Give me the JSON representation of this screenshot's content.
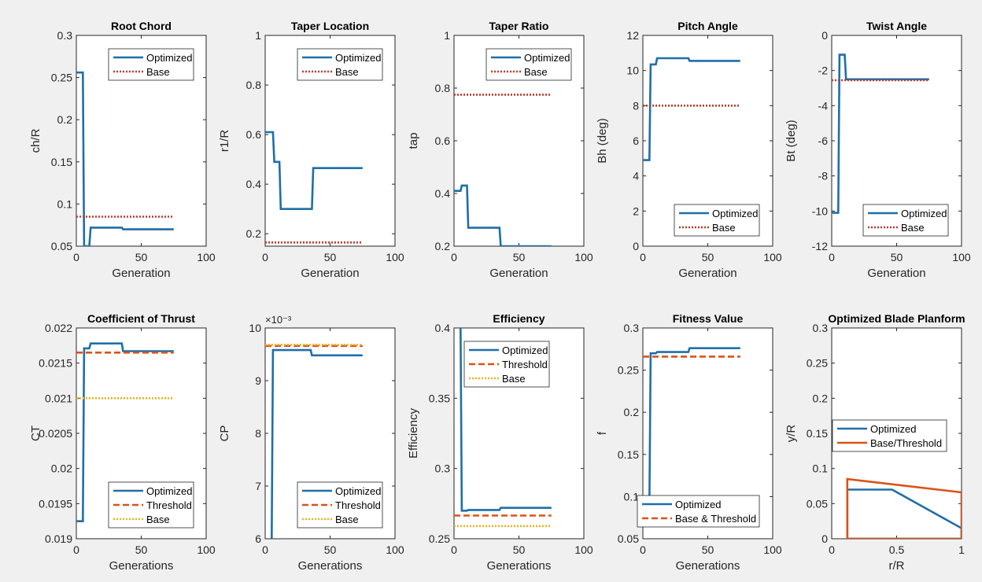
{
  "colors": {
    "optimized": "#1f6fa8",
    "base": "#d95319",
    "base_dotted": "#c0392b",
    "base_yellow": "#edb120",
    "background": "#f0f0f0",
    "axes": "#ffffff"
  },
  "chart_data": [
    {
      "type": "line",
      "title": "Root Chord",
      "xlabel": "Generation",
      "ylabel": "ch/R",
      "xlim": [
        0,
        100
      ],
      "ylim": [
        0.05,
        0.3
      ],
      "xticks": [
        "0",
        "50",
        "100"
      ],
      "yticks": [
        "0.05",
        "0.1",
        "0.15",
        "0.2",
        "0.25",
        "0.3"
      ],
      "legend": "top-right",
      "series": [
        {
          "name": "Optimized",
          "style": "solid",
          "color": "optimized",
          "x": [
            0,
            5,
            6,
            10,
            11,
            35,
            36,
            75
          ],
          "y": [
            0.256,
            0.256,
            0.05,
            0.05,
            0.072,
            0.072,
            0.07,
            0.07
          ]
        },
        {
          "name": "Base",
          "style": "dotted",
          "color": "base_dotted",
          "x": [
            0,
            75
          ],
          "y": [
            0.085,
            0.085
          ]
        }
      ]
    },
    {
      "type": "line",
      "title": "Taper Location",
      "xlabel": "Generation",
      "ylabel": "r1/R",
      "xlim": [
        0,
        100
      ],
      "ylim": [
        0.15,
        1
      ],
      "xticks": [
        "0",
        "50",
        "100"
      ],
      "yticks": [
        "0.2",
        "0.4",
        "0.6",
        "0.8",
        "1"
      ],
      "legend": "top-right",
      "series": [
        {
          "name": "Optimized",
          "style": "solid",
          "color": "optimized",
          "x": [
            0,
            6,
            7,
            11,
            12,
            36,
            37,
            75
          ],
          "y": [
            0.61,
            0.61,
            0.49,
            0.49,
            0.3,
            0.3,
            0.465,
            0.465
          ]
        },
        {
          "name": "Base",
          "style": "dotted",
          "color": "base_dotted",
          "x": [
            0,
            75
          ],
          "y": [
            0.165,
            0.165
          ]
        }
      ]
    },
    {
      "type": "line",
      "title": "Taper Ratio",
      "xlabel": "Generation",
      "ylabel": "tap",
      "xlim": [
        0,
        100
      ],
      "ylim": [
        0.2,
        1
      ],
      "xticks": [
        "0",
        "50",
        "100"
      ],
      "yticks": [
        "0.2",
        "0.4",
        "0.6",
        "0.8",
        "1"
      ],
      "legend": "top-right",
      "series": [
        {
          "name": "Optimized",
          "style": "solid",
          "color": "optimized",
          "x": [
            0,
            5,
            6,
            10,
            11,
            35,
            36,
            75
          ],
          "y": [
            0.41,
            0.41,
            0.43,
            0.43,
            0.27,
            0.27,
            0.2,
            0.2
          ]
        },
        {
          "name": "Base",
          "style": "dotted",
          "color": "base_dotted",
          "x": [
            0,
            75
          ],
          "y": [
            0.775,
            0.775
          ]
        }
      ]
    },
    {
      "type": "line",
      "title": "Pitch Angle",
      "xlabel": "Generation",
      "ylabel": "Bh (deg)",
      "xlim": [
        0,
        100
      ],
      "ylim": [
        0,
        12
      ],
      "xticks": [
        "0",
        "50",
        "100"
      ],
      "yticks": [
        "0",
        "2",
        "4",
        "6",
        "8",
        "10",
        "12"
      ],
      "legend": "bottom-right",
      "series": [
        {
          "name": "Optimized",
          "style": "solid",
          "color": "optimized",
          "x": [
            0,
            5,
            6,
            10,
            11,
            35,
            36,
            75
          ],
          "y": [
            4.9,
            4.9,
            10.35,
            10.35,
            10.7,
            10.7,
            10.55,
            10.55
          ]
        },
        {
          "name": "Base",
          "style": "dotted",
          "color": "base_dotted",
          "x": [
            0,
            75
          ],
          "y": [
            8,
            8
          ]
        }
      ]
    },
    {
      "type": "line",
      "title": "Twist Angle",
      "xlabel": "Generation",
      "ylabel": "Bt (deg)",
      "xlim": [
        0,
        100
      ],
      "ylim": [
        -12,
        0
      ],
      "xticks": [
        "0",
        "50",
        "100"
      ],
      "yticks": [
        "-12",
        "-10",
        "-8",
        "-6",
        "-4",
        "-2",
        "0"
      ],
      "legend": "bottom-right",
      "series": [
        {
          "name": "Optimized",
          "style": "solid",
          "color": "optimized",
          "x": [
            0,
            5,
            6,
            10,
            11,
            75
          ],
          "y": [
            -10.1,
            -10.1,
            -1.1,
            -1.1,
            -2.5,
            -2.5
          ]
        },
        {
          "name": "Base",
          "style": "dotted",
          "color": "base_dotted",
          "x": [
            0,
            75
          ],
          "y": [
            -2.55,
            -2.55
          ]
        }
      ]
    },
    {
      "type": "line",
      "title": "Coefficient of Thrust",
      "xlabel": "Generations",
      "ylabel": "CT",
      "xlim": [
        0,
        100
      ],
      "ylim": [
        0.019,
        0.022
      ],
      "xticks": [
        "0",
        "50",
        "100"
      ],
      "yticks": [
        "0.019",
        "0.0195",
        "0.02",
        "0.0205",
        "0.021",
        "0.0215",
        "0.022"
      ],
      "legend": "bottom-right",
      "series": [
        {
          "name": "Optimized",
          "style": "solid",
          "color": "optimized",
          "x": [
            0,
            5,
            6,
            10,
            11,
            35,
            36,
            75
          ],
          "y": [
            0.01925,
            0.01925,
            0.02171,
            0.02171,
            0.02178,
            0.02178,
            0.02167,
            0.02167
          ]
        },
        {
          "name": "Threshold",
          "style": "dashed",
          "color": "base",
          "x": [
            0,
            75
          ],
          "y": [
            0.02165,
            0.02165
          ]
        },
        {
          "name": "Base",
          "style": "dotted",
          "color": "base_yellow",
          "x": [
            0,
            75
          ],
          "y": [
            0.021,
            0.021
          ]
        }
      ]
    },
    {
      "type": "line",
      "title": "",
      "exponent": "×10⁻³",
      "xlabel": "Generations",
      "ylabel": "CP",
      "xlim": [
        0,
        100
      ],
      "ylim": [
        6,
        10
      ],
      "xticks": [
        "0",
        "50",
        "100"
      ],
      "yticks": [
        "6",
        "7",
        "8",
        "9",
        "10"
      ],
      "legend": "bottom-right",
      "series": [
        {
          "name": "Optimized",
          "style": "solid",
          "color": "optimized",
          "x": [
            5,
            5,
            6,
            35,
            36,
            75
          ],
          "y": [
            6,
            6,
            9.58,
            9.58,
            9.48,
            9.48
          ]
        },
        {
          "name": "Threshold",
          "style": "dashed",
          "color": "base",
          "x": [
            0,
            75
          ],
          "y": [
            9.66,
            9.66
          ]
        },
        {
          "name": "Base",
          "style": "dotted",
          "color": "base_yellow",
          "x": [
            0,
            75
          ],
          "y": [
            9.68,
            9.68
          ]
        }
      ]
    },
    {
      "type": "line",
      "title": "Efficiency",
      "xlabel": "Generations",
      "ylabel": "Efficiency",
      "xlim": [
        0,
        100
      ],
      "ylim": [
        0.25,
        0.4
      ],
      "xticks": [
        "0",
        "50",
        "100"
      ],
      "yticks": [
        "0.25",
        "0.3",
        "0.35",
        "0.4"
      ],
      "legend": "top-right",
      "series": [
        {
          "name": "Optimized",
          "style": "solid",
          "color": "optimized",
          "x": [
            5,
            6,
            10,
            11,
            35,
            36,
            75
          ],
          "y": [
            0.4,
            0.27,
            0.27,
            0.2705,
            0.2705,
            0.272,
            0.272
          ]
        },
        {
          "name": "Threshold",
          "style": "dashed",
          "color": "base",
          "x": [
            0,
            75
          ],
          "y": [
            0.2665,
            0.2665
          ]
        },
        {
          "name": "Base",
          "style": "dotted",
          "color": "base_yellow",
          "x": [
            0,
            75
          ],
          "y": [
            0.259,
            0.259
          ]
        }
      ]
    },
    {
      "type": "line",
      "title": "Fitness Value",
      "xlabel": "Generations",
      "ylabel": "f",
      "xlim": [
        0,
        100
      ],
      "ylim": [
        0.05,
        0.3
      ],
      "xticks": [
        "0",
        "50",
        "100"
      ],
      "yticks": [
        "0.05",
        "0.1",
        "0.15",
        "0.2",
        "0.25",
        "0.3"
      ],
      "legend": "bottom-right",
      "series": [
        {
          "name": "Optimized",
          "style": "solid",
          "color": "optimized",
          "x": [
            5,
            6,
            10,
            11,
            35,
            36,
            75
          ],
          "y": [
            0.09,
            0.27,
            0.27,
            0.2715,
            0.2715,
            0.276,
            0.276
          ]
        },
        {
          "name": "Base & Threshold",
          "style": "dashed",
          "color": "base",
          "x": [
            0,
            75
          ],
          "y": [
            0.266,
            0.266
          ]
        }
      ]
    },
    {
      "type": "line",
      "title": "Optimized Blade Planform",
      "xlabel": "r/R",
      "ylabel": "y/R",
      "xlim": [
        0,
        1
      ],
      "ylim": [
        0,
        0.3
      ],
      "xticks": [
        "0",
        "0.5",
        "1"
      ],
      "yticks": [
        "0",
        "0.05",
        "0.1",
        "0.15",
        "0.2",
        "0.25",
        "0.3"
      ],
      "legend": "middle-right",
      "series": [
        {
          "name": "Optimized",
          "style": "solid",
          "color": "optimized",
          "x": [
            0.12,
            0.12,
            0.465,
            1,
            1,
            0.12
          ],
          "y": [
            0,
            0.07,
            0.07,
            0.015,
            0,
            0
          ]
        },
        {
          "name": "Base/Threshold",
          "style": "solid",
          "color": "base",
          "x": [
            0.12,
            0.12,
            1,
            1,
            0.12
          ],
          "y": [
            0,
            0.085,
            0.066,
            0,
            0
          ]
        }
      ]
    }
  ]
}
